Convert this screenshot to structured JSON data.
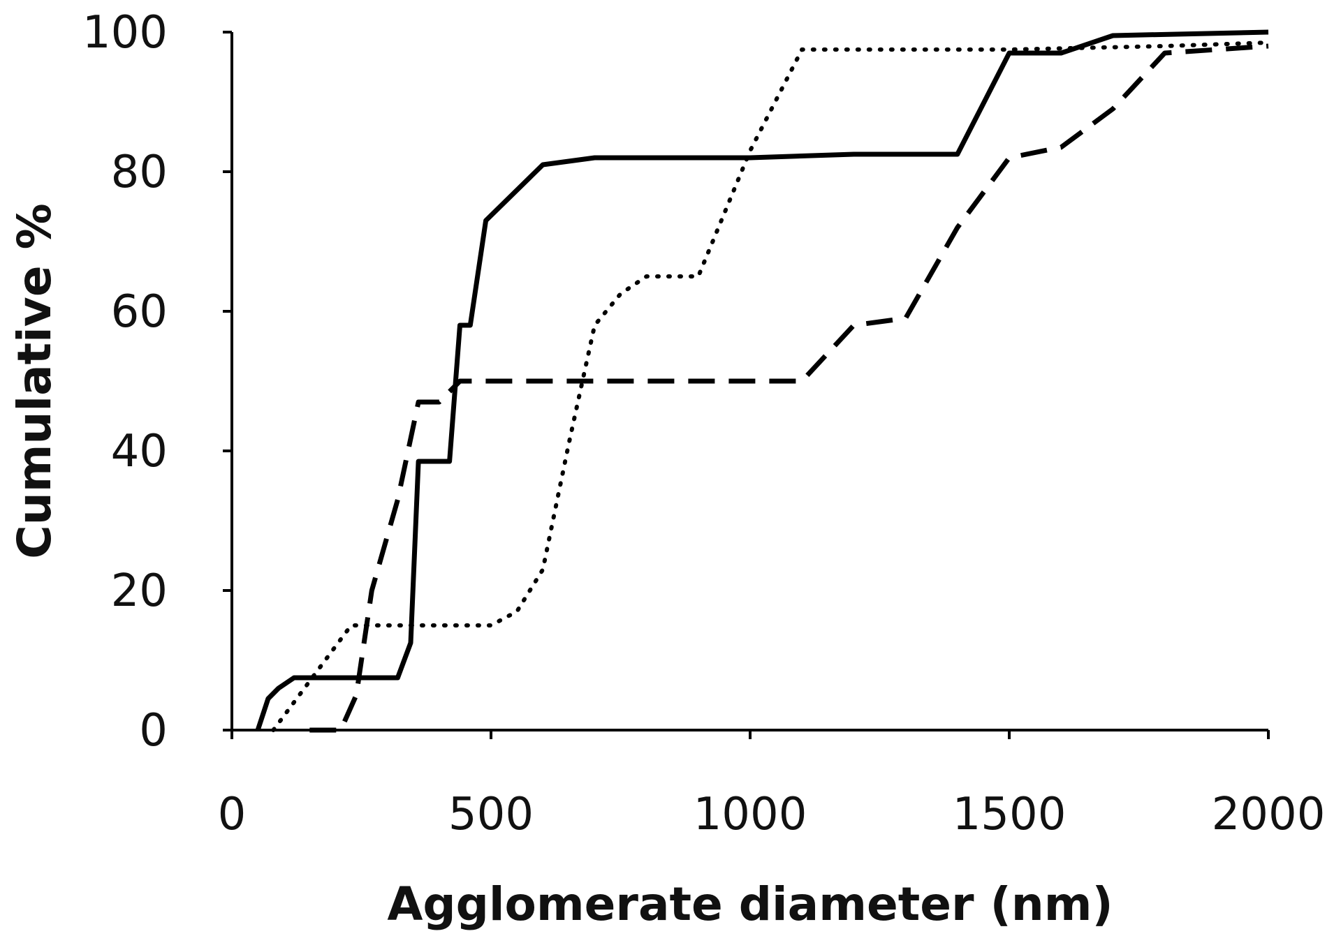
{
  "chart_data": {
    "type": "line",
    "title": "",
    "xlabel": "Agglomerate diameter (nm)",
    "ylabel": "Cumulative %",
    "xlim": [
      0,
      2000
    ],
    "ylim": [
      0,
      100
    ],
    "xticks": [
      0,
      500,
      1000,
      1500,
      2000
    ],
    "yticks": [
      0,
      20,
      40,
      60,
      80,
      100
    ],
    "grid": false,
    "legend": "none",
    "series": [
      {
        "style": "solid",
        "color": "#000000",
        "points": [
          [
            50,
            0
          ],
          [
            70,
            4.5
          ],
          [
            90,
            6
          ],
          [
            120,
            7.5
          ],
          [
            320,
            7.5
          ],
          [
            345,
            12.5
          ],
          [
            360,
            38.5
          ],
          [
            420,
            38.5
          ],
          [
            440,
            58
          ],
          [
            460,
            58
          ],
          [
            490,
            73
          ],
          [
            600,
            81
          ],
          [
            700,
            82
          ],
          [
            1000,
            82
          ],
          [
            1200,
            82.5
          ],
          [
            1400,
            82.5
          ],
          [
            1500,
            97
          ],
          [
            1600,
            97
          ],
          [
            1700,
            99.5
          ],
          [
            2000,
            100
          ]
        ]
      },
      {
        "style": "dashed",
        "color": "#000000",
        "points": [
          [
            150,
            0
          ],
          [
            210,
            0
          ],
          [
            240,
            5
          ],
          [
            270,
            20
          ],
          [
            320,
            33
          ],
          [
            360,
            47
          ],
          [
            400,
            47
          ],
          [
            440,
            50
          ],
          [
            1100,
            50
          ],
          [
            1200,
            58
          ],
          [
            1300,
            59
          ],
          [
            1400,
            72
          ],
          [
            1500,
            82
          ],
          [
            1600,
            83.5
          ],
          [
            1700,
            89
          ],
          [
            1800,
            97
          ],
          [
            2000,
            98
          ]
        ]
      },
      {
        "style": "dotted",
        "color": "#000000",
        "points": [
          [
            80,
            0
          ],
          [
            150,
            7
          ],
          [
            230,
            15
          ],
          [
            500,
            15
          ],
          [
            550,
            17
          ],
          [
            600,
            23
          ],
          [
            650,
            41
          ],
          [
            700,
            58
          ],
          [
            750,
            62.5
          ],
          [
            800,
            65
          ],
          [
            900,
            65
          ],
          [
            1000,
            83
          ],
          [
            1100,
            97.5
          ],
          [
            1500,
            97.5
          ],
          [
            1800,
            98
          ],
          [
            2000,
            98.5
          ]
        ]
      }
    ]
  }
}
